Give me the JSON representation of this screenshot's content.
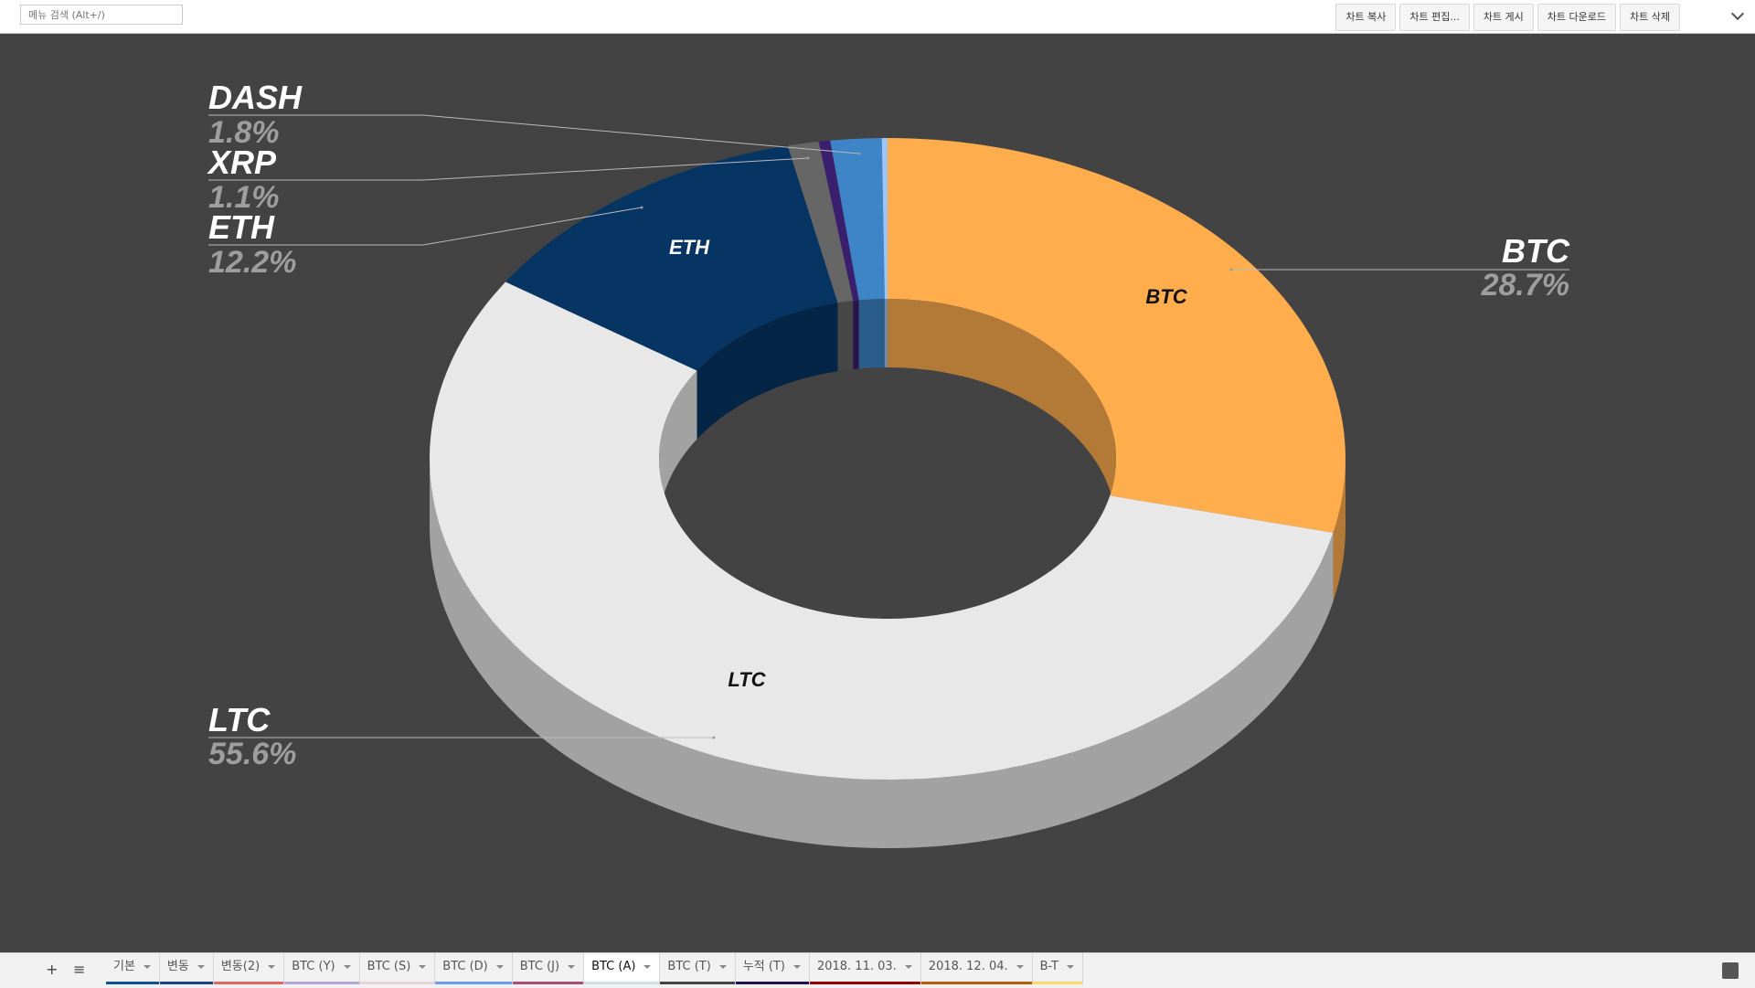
{
  "toolbar": {
    "search_placeholder": "메뉴 검색 (Alt+/)",
    "buttons": [
      "차트 복사",
      "차트 편집...",
      "차트 게시",
      "차트 다운로드",
      "차트 삭제"
    ]
  },
  "chart_data": {
    "type": "pie3d_donut",
    "categories": [
      "BTC",
      "LTC",
      "ETH",
      "XRP",
      null,
      "DASH",
      null
    ],
    "values": [
      28.7,
      55.6,
      12.2,
      1.1,
      0.4,
      1.8,
      0.2
    ],
    "value_labels": [
      "28.7%",
      "55.6%",
      "12.2%",
      "1.1%",
      null,
      "1.8%",
      null
    ],
    "colors": [
      "#ffad4d",
      "#e8e8e8",
      "#063563",
      "#666666",
      "#3a1f6e",
      "#3d85c6",
      "#9fc5f8"
    ]
  },
  "tabs": [
    {
      "label": "기본",
      "color": "#0b5394"
    },
    {
      "label": "변동",
      "color": "#1c4587"
    },
    {
      "label": "변동(2)",
      "color": "#e06666"
    },
    {
      "label": "BTC (Y)",
      "color": "#b4a7d6"
    },
    {
      "label": "BTC (S)",
      "color": "#ead1dc"
    },
    {
      "label": "BTC (D)",
      "color": "#6d9eeb"
    },
    {
      "label": "BTC (J)",
      "color": "#a64d79"
    },
    {
      "label": "BTC (A)",
      "color": "#d0e0e3",
      "active": true
    },
    {
      "label": "BTC (T)",
      "color": "#434343"
    },
    {
      "label": "누적 (T)",
      "color": "#20124d"
    },
    {
      "label": "2018. 11. 03.",
      "color": "#990000"
    },
    {
      "label": "2018. 12. 04.",
      "color": "#b45f06"
    },
    {
      "label": "B-T",
      "color": "#ffd966"
    }
  ]
}
